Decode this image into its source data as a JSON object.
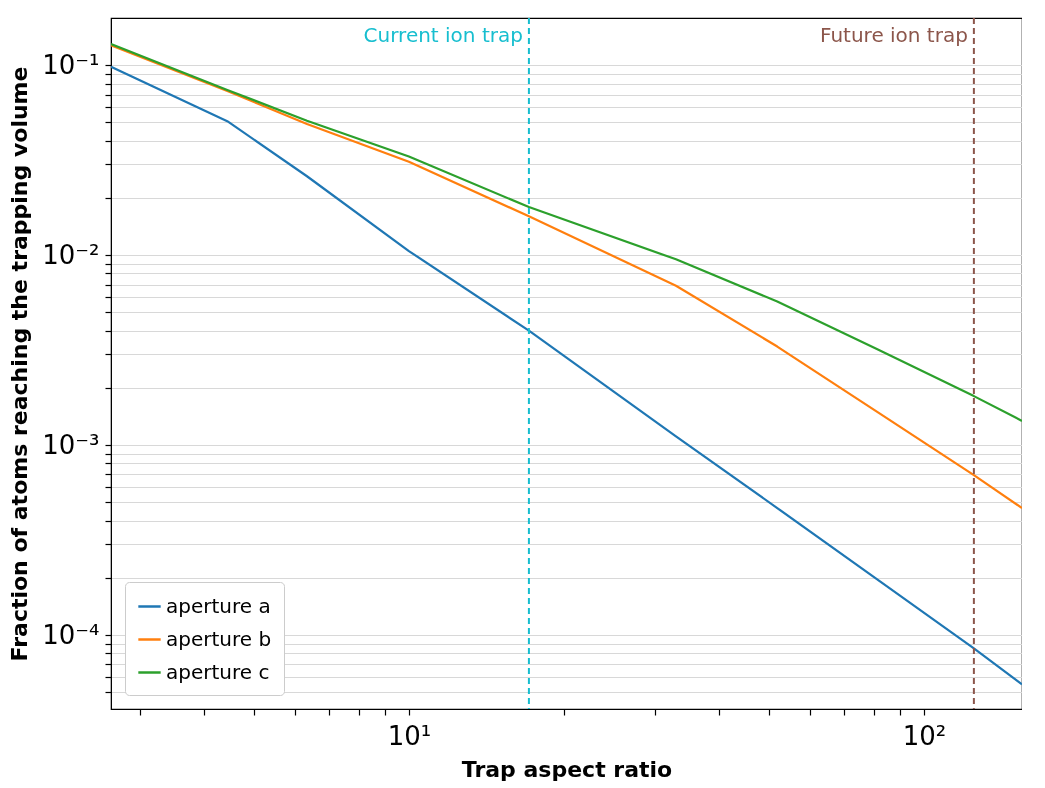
{
  "chart_data": {
    "type": "line",
    "xlabel": "Trap aspect ratio",
    "ylabel": "Fraction of atoms reaching the trapping volume",
    "log": "xy",
    "grid": "y",
    "legend": "bottom left",
    "line_style": "solid",
    "marker": "none",
    "xlim": [
      2.64,
      155
    ],
    "ylim": [
      4.08e-05,
      0.177
    ],
    "xticks": [
      {
        "value": 3,
        "label": null
      },
      {
        "value": 4,
        "label": null
      },
      {
        "value": 5,
        "label": null
      },
      {
        "value": 6,
        "label": null
      },
      {
        "value": 7,
        "label": null
      },
      {
        "value": 8,
        "label": null
      },
      {
        "value": 9,
        "label": null
      },
      {
        "value": 10,
        "label": "10¹"
      },
      {
        "value": 20,
        "label": null
      },
      {
        "value": 30,
        "label": null
      },
      {
        "value": 40,
        "label": null
      },
      {
        "value": 50,
        "label": null
      },
      {
        "value": 60,
        "label": null
      },
      {
        "value": 70,
        "label": null
      },
      {
        "value": 80,
        "label": null
      },
      {
        "value": 90,
        "label": null
      },
      {
        "value": 100,
        "label": "10²"
      }
    ],
    "yticks": [
      {
        "value": 5e-05,
        "label": null
      },
      {
        "value": 6e-05,
        "label": null
      },
      {
        "value": 7e-05,
        "label": null
      },
      {
        "value": 8e-05,
        "label": null
      },
      {
        "value": 9e-05,
        "label": null
      },
      {
        "value": 0.0001,
        "label": "10⁻⁴"
      },
      {
        "value": 0.0002,
        "label": null
      },
      {
        "value": 0.0003,
        "label": null
      },
      {
        "value": 0.0004,
        "label": null
      },
      {
        "value": 0.0005,
        "label": null
      },
      {
        "value": 0.0006,
        "label": null
      },
      {
        "value": 0.0007,
        "label": null
      },
      {
        "value": 0.0008,
        "label": null
      },
      {
        "value": 0.0009,
        "label": null
      },
      {
        "value": 0.001,
        "label": "10⁻³"
      },
      {
        "value": 0.002,
        "label": null
      },
      {
        "value": 0.003,
        "label": null
      },
      {
        "value": 0.004,
        "label": null
      },
      {
        "value": 0.005,
        "label": null
      },
      {
        "value": 0.006,
        "label": null
      },
      {
        "value": 0.007,
        "label": null
      },
      {
        "value": 0.008,
        "label": null
      },
      {
        "value": 0.009,
        "label": null
      },
      {
        "value": 0.01,
        "label": "10⁻²"
      },
      {
        "value": 0.02,
        "label": null
      },
      {
        "value": 0.03,
        "label": null
      },
      {
        "value": 0.04,
        "label": null
      },
      {
        "value": 0.05,
        "label": null
      },
      {
        "value": 0.06,
        "label": null
      },
      {
        "value": 0.07,
        "label": null
      },
      {
        "value": 0.08,
        "label": null
      },
      {
        "value": 0.09,
        "label": null
      },
      {
        "value": 0.1,
        "label": "10⁻¹"
      }
    ],
    "x": [
      2.64,
      4.44,
      6.34,
      10,
      17.1,
      33,
      51.9,
      81,
      125,
      155
    ],
    "series": [
      {
        "name": "aperture a",
        "color": "#1f77b4",
        "values": [
          0.098,
          0.0507,
          0.026,
          0.0105,
          0.004,
          0.00111,
          0.000466,
          0.000197,
          8.5e-05,
          5.5e-05
        ]
      },
      {
        "name": "aperture b",
        "color": "#ff7f0e",
        "values": [
          0.127,
          0.073,
          0.049,
          0.031,
          0.016,
          0.0069,
          0.0033,
          0.0015,
          0.000695,
          0.000466
        ]
      },
      {
        "name": "aperture c",
        "color": "#2ca02c",
        "values": [
          0.129,
          0.074,
          0.051,
          0.033,
          0.0179,
          0.0095,
          0.0057,
          0.0032,
          0.00181,
          0.00134
        ]
      }
    ],
    "ref_lines": [
      {
        "axis": "x",
        "value": 17.1,
        "label": "Current ion trap",
        "color": "#17becf",
        "line_style": "dashed"
      },
      {
        "axis": "x",
        "value": 125,
        "label": "Future ion trap",
        "color": "#8c564b",
        "line_style": "dashed"
      }
    ]
  }
}
